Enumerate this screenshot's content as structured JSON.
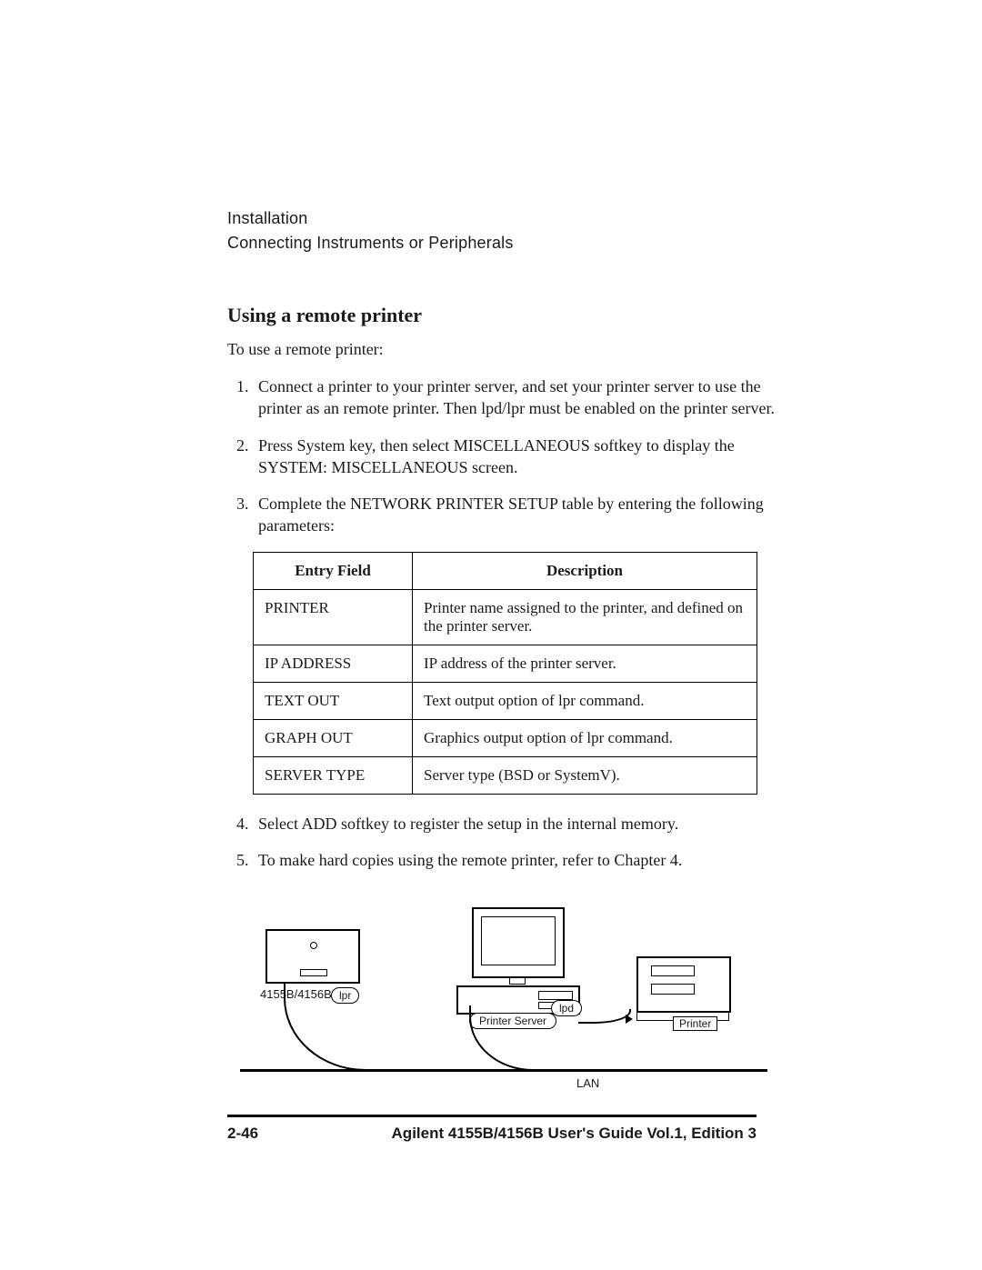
{
  "header": {
    "line1": "Installation",
    "line2": "Connecting Instruments or Peripherals"
  },
  "section": {
    "title": "Using a remote printer",
    "intro": "To use a remote printer:"
  },
  "steps": [
    "Connect a printer to your printer server, and set your printer server to use the printer as an remote printer. Then lpd/lpr must be enabled on the printer server.",
    "Press System key, then select MISCELLANEOUS softkey to display the SYSTEM: MISCELLANEOUS screen.",
    "Complete the NETWORK PRINTER SETUP table by entering the following parameters:",
    "Select ADD softkey to register the setup in the internal memory.",
    "To make hard copies using the remote printer, refer to Chapter 4."
  ],
  "table": {
    "headers": {
      "field": "Entry Field",
      "desc": "Description"
    },
    "rows": [
      {
        "field": "PRINTER",
        "desc": "Printer name assigned to the printer, and defined on the printer server."
      },
      {
        "field": "IP ADDRESS",
        "desc": "IP address of the printer server."
      },
      {
        "field": "TEXT OUT",
        "desc": "Text output option of lpr command."
      },
      {
        "field": "GRAPH OUT",
        "desc": "Graphics output option of lpr command."
      },
      {
        "field": "SERVER TYPE",
        "desc": "Server type (BSD or SystemV)."
      }
    ]
  },
  "diagram": {
    "instrument_label": "4155B/4156B",
    "lpr": "lpr",
    "lpd": "lpd",
    "server_label": "Printer Server",
    "printer_label": "Printer",
    "lan_label": "LAN"
  },
  "footer": {
    "page": "2-46",
    "book": "Agilent 4155B/4156B User's Guide Vol.1, Edition 3"
  }
}
